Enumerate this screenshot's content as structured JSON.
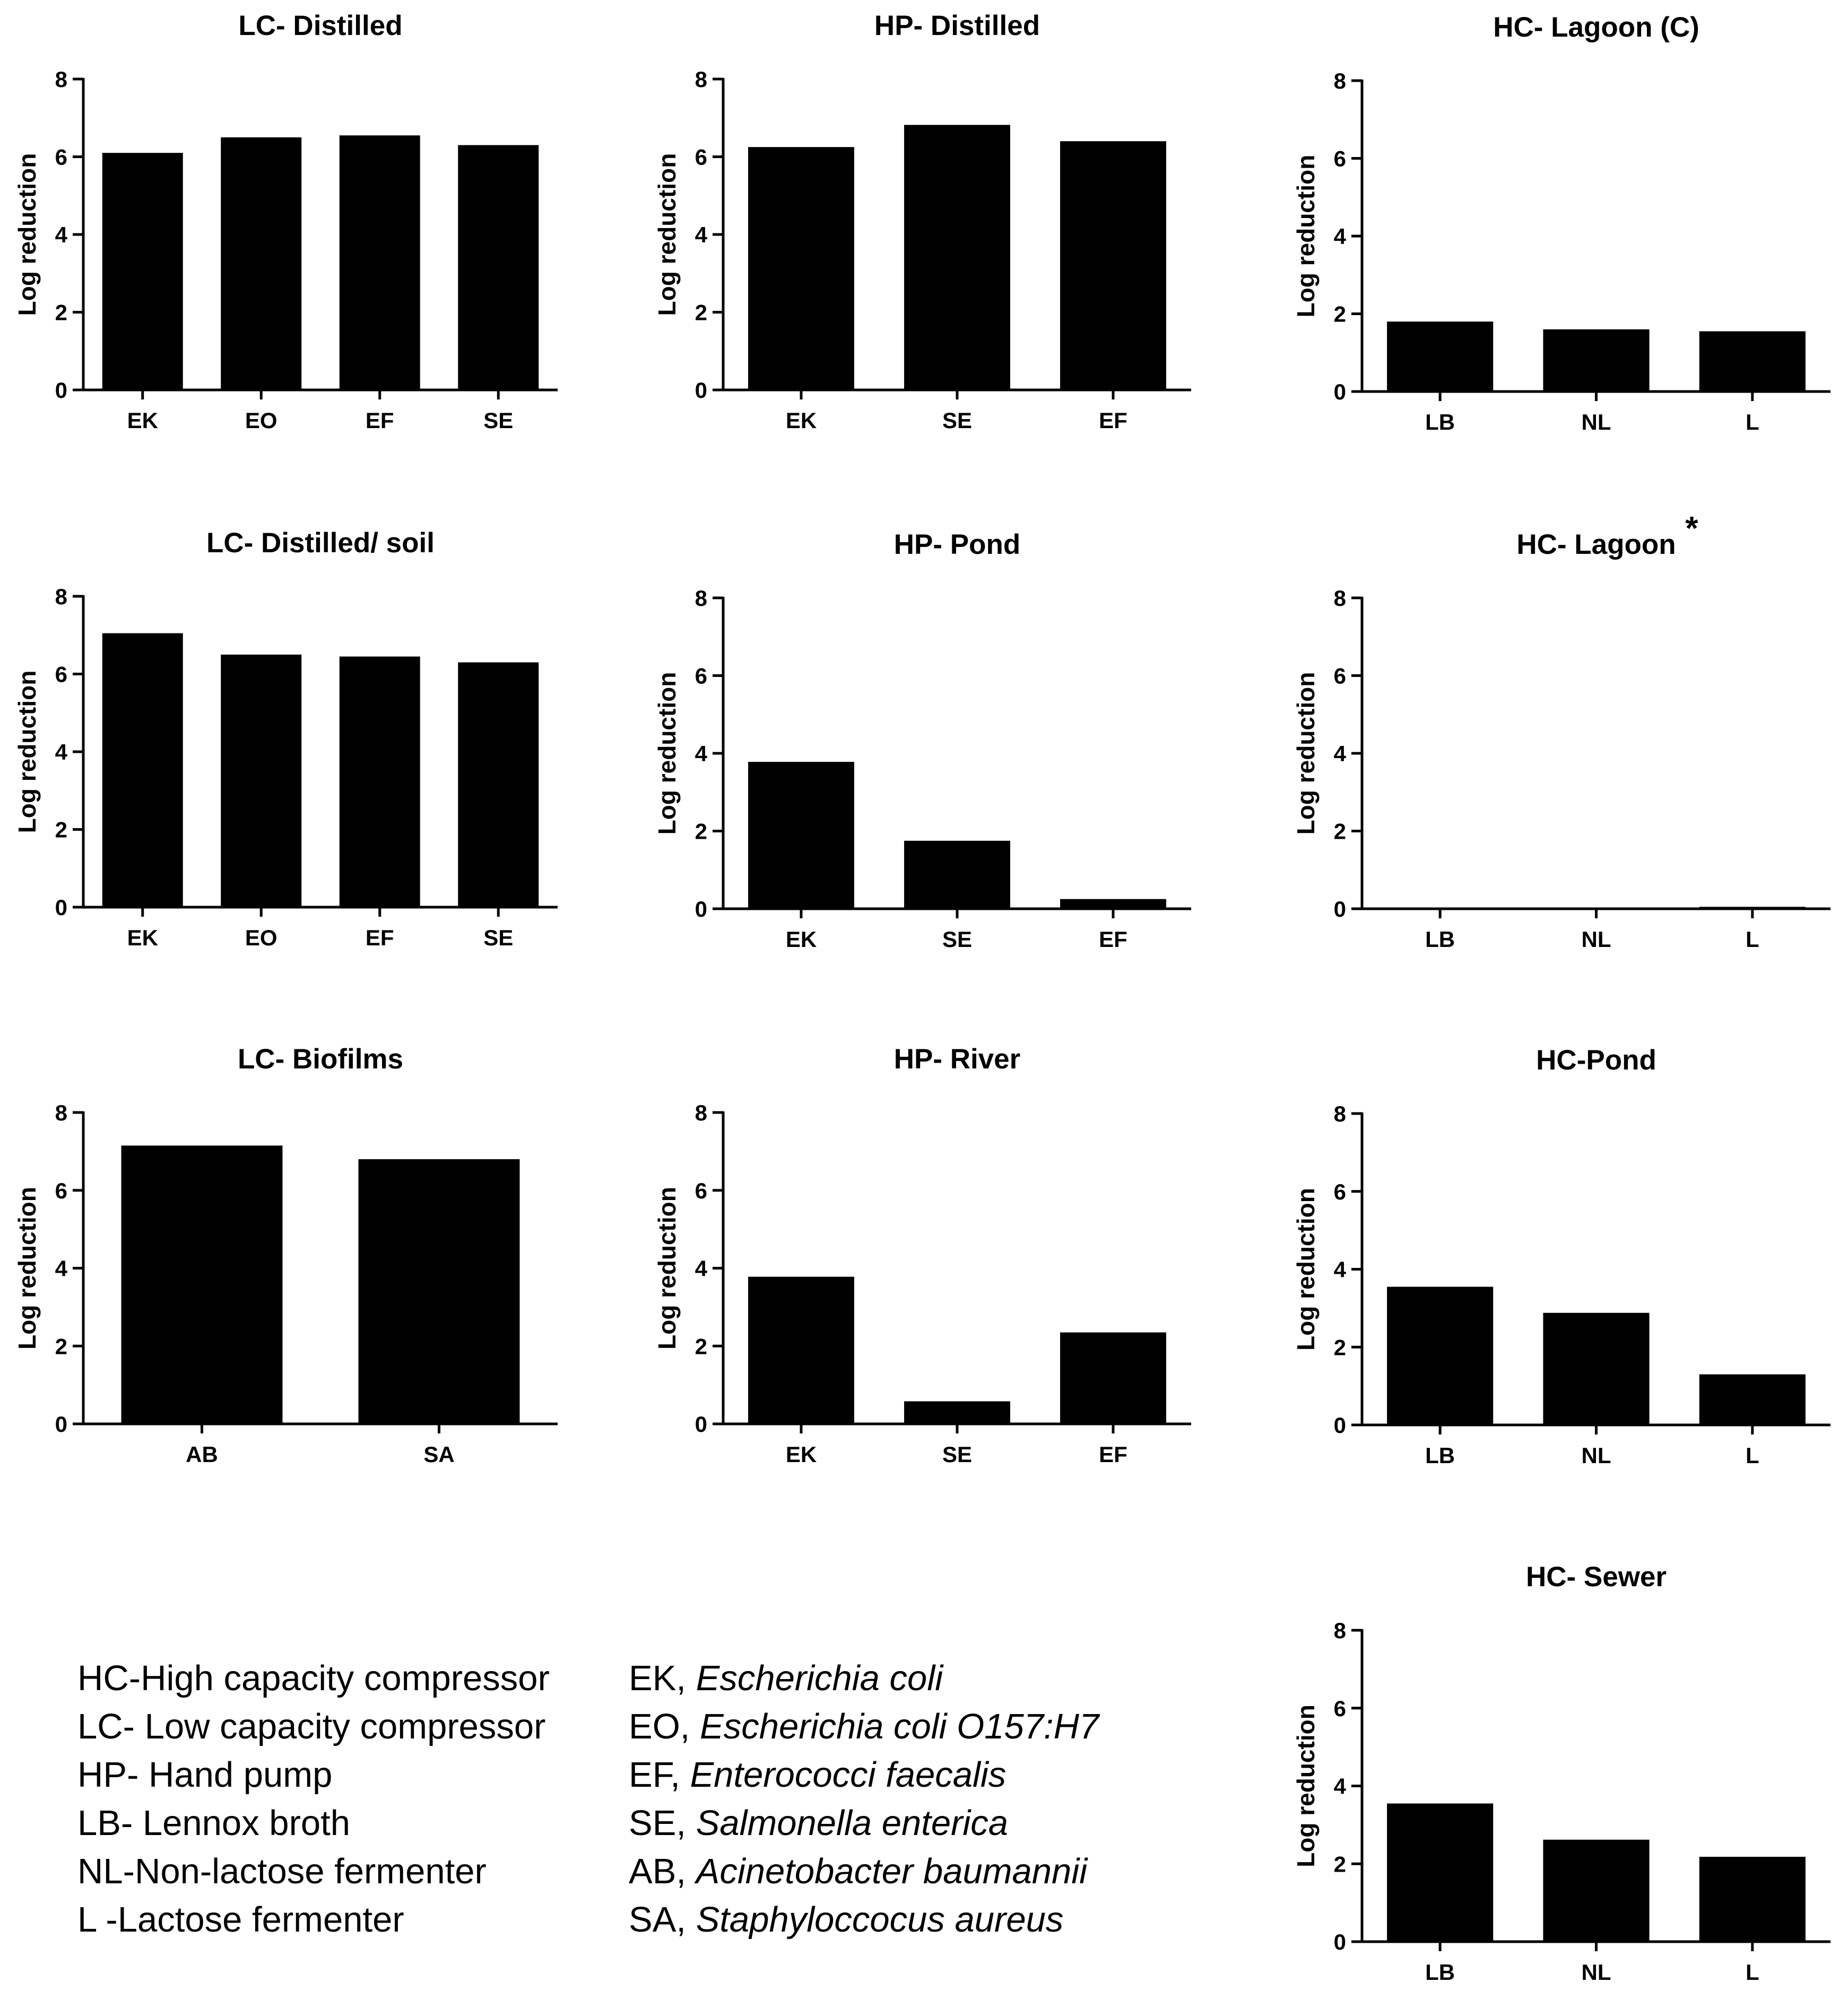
{
  "chart_data": [
    {
      "type": "bar",
      "title": "LC- Distilled",
      "ylabel": "Log reduction",
      "xlabel": "",
      "ylim": [
        0,
        8
      ],
      "yticks": [
        0,
        2,
        4,
        6,
        8
      ],
      "categories": [
        "EK",
        "EO",
        "EF",
        "SE"
      ],
      "values": [
        6.1,
        6.5,
        6.55,
        6.3
      ]
    },
    {
      "type": "bar",
      "title": "HP- Distilled",
      "ylabel": "Log reduction",
      "xlabel": "",
      "ylim": [
        0,
        8
      ],
      "yticks": [
        0,
        2,
        4,
        6,
        8
      ],
      "categories": [
        "EK",
        "SE",
        "EF"
      ],
      "values": [
        6.25,
        6.82,
        6.4
      ]
    },
    {
      "type": "bar",
      "title": "HC- Lagoon (C)",
      "ylabel": "Log reduction",
      "xlabel": "",
      "ylim": [
        0,
        8
      ],
      "yticks": [
        0,
        2,
        4,
        6,
        8
      ],
      "categories": [
        "LB",
        "NL",
        "L"
      ],
      "values": [
        1.8,
        1.6,
        1.55
      ]
    },
    {
      "type": "bar",
      "title": "LC- Distilled/ soil",
      "ylabel": "Log reduction",
      "xlabel": "",
      "ylim": [
        0,
        8
      ],
      "yticks": [
        0,
        2,
        4,
        6,
        8
      ],
      "categories": [
        "EK",
        "EO",
        "EF",
        "SE"
      ],
      "values": [
        7.05,
        6.5,
        6.45,
        6.3
      ]
    },
    {
      "type": "bar",
      "title": "HP- Pond",
      "ylabel": "Log reduction",
      "xlabel": "",
      "ylim": [
        0,
        8
      ],
      "yticks": [
        0,
        2,
        4,
        6,
        8
      ],
      "categories": [
        "EK",
        "SE",
        "EF"
      ],
      "values": [
        3.78,
        1.75,
        0.25
      ]
    },
    {
      "type": "bar",
      "title": "HC- Lagoon",
      "title_mark": "*",
      "ylabel": "Log reduction",
      "xlabel": "",
      "ylim": [
        0,
        8
      ],
      "yticks": [
        0,
        2,
        4,
        6,
        8
      ],
      "categories": [
        "LB",
        "NL",
        "L"
      ],
      "values": [
        0,
        0,
        0.05
      ]
    },
    {
      "type": "bar",
      "title": "LC- Biofilms",
      "ylabel": "Log reduction",
      "xlabel": "",
      "ylim": [
        0,
        8
      ],
      "yticks": [
        0,
        2,
        4,
        6,
        8
      ],
      "categories": [
        "AB",
        "SA"
      ],
      "values": [
        7.15,
        6.8
      ]
    },
    {
      "type": "bar",
      "title": "HP- River",
      "ylabel": "Log reduction",
      "xlabel": "",
      "ylim": [
        0,
        8
      ],
      "yticks": [
        0,
        2,
        4,
        6,
        8
      ],
      "categories": [
        "EK",
        "SE",
        "EF"
      ],
      "values": [
        3.78,
        0.58,
        2.35
      ]
    },
    {
      "type": "bar",
      "title": "HC-Pond",
      "ylabel": "Log reduction",
      "xlabel": "",
      "ylim": [
        0,
        8
      ],
      "yticks": [
        0,
        2,
        4,
        6,
        8
      ],
      "categories": [
        "LB",
        "NL",
        "L"
      ],
      "values": [
        3.55,
        2.88,
        1.3
      ]
    },
    {
      "type": "bar",
      "title": "HC- Sewer",
      "ylabel": "Log reduction",
      "xlabel": "",
      "ylim": [
        0,
        8
      ],
      "yticks": [
        0,
        2,
        4,
        6,
        8
      ],
      "categories": [
        "LB",
        "NL",
        "L"
      ],
      "values": [
        3.55,
        2.62,
        2.18
      ]
    }
  ],
  "legend": {
    "abbreviations": [
      "HC-High capacity compressor",
      "LC- Low capacity compressor",
      "HP- Hand pump",
      "LB- Lennox broth",
      "NL-Non-lactose fermenter",
      "L  -Lactose fermenter"
    ],
    "species": [
      {
        "code": "EK,",
        "name": "Escherichia coli"
      },
      {
        "code": "EO,",
        "name": "Escherichia coli O157:H7"
      },
      {
        "code": "EF,",
        "name": "Enterococci faecalis"
      },
      {
        "code": "SE,",
        "name": "Salmonella enterica"
      },
      {
        "code": "AB,",
        "name": "Acinetobacter baumannii"
      },
      {
        "code": "SA,",
        "name": "Staphyloccocus aureus"
      }
    ]
  },
  "colors": {
    "bar": "#000000",
    "axis": "#000000",
    "text": "#000000",
    "background": "#ffffff"
  }
}
